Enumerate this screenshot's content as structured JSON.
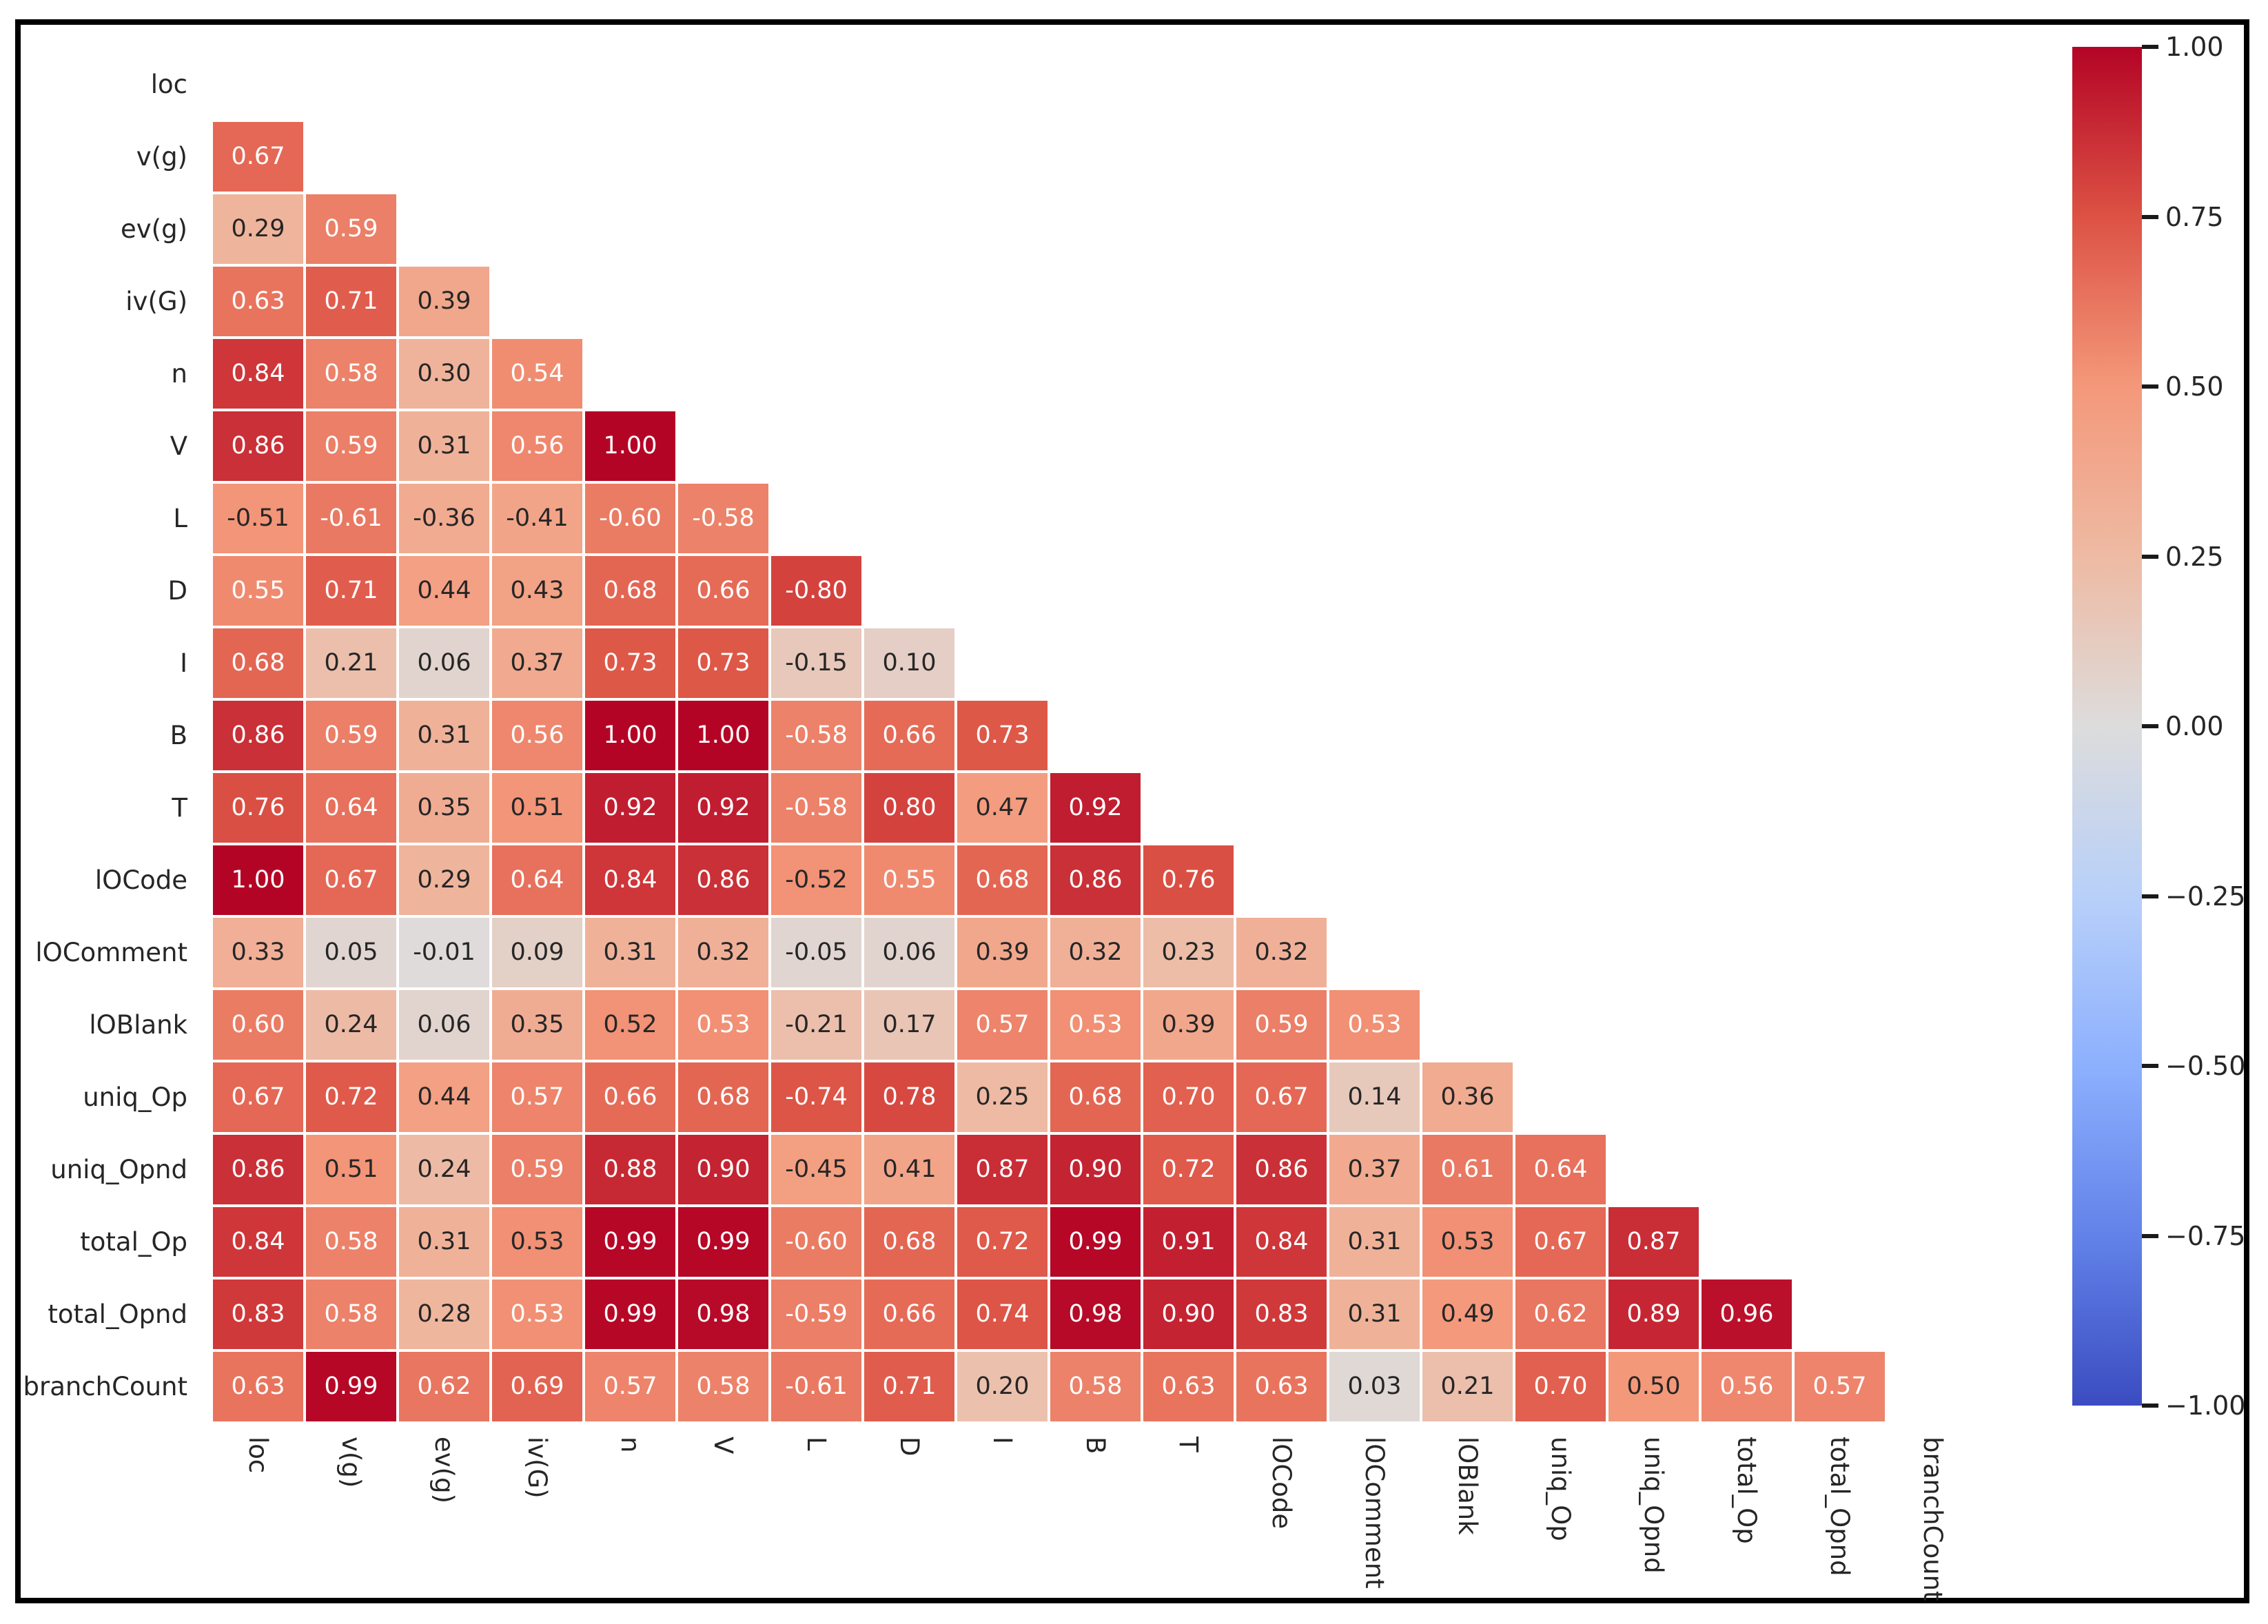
{
  "chart_data": {
    "type": "heatmap",
    "title": "",
    "description": "Lower-triangular correlation matrix heatmap with annotated coefficients, colored by absolute value on a coolwarm colormap",
    "labels": [
      "loc",
      "v(g)",
      "ev(g)",
      "iv(G)",
      "n",
      "V",
      "L",
      "D",
      "I",
      "B",
      "T",
      "lOCode",
      "lOComment",
      "lOBlank",
      "uniq_Op",
      "uniq_Opnd",
      "total_Op",
      "total_Opnd",
      "branchCount"
    ],
    "rows": [
      {
        "label": "loc",
        "values": []
      },
      {
        "label": "v(g)",
        "values": [
          0.67
        ]
      },
      {
        "label": "ev(g)",
        "values": [
          0.29,
          0.59
        ]
      },
      {
        "label": "iv(G)",
        "values": [
          0.63,
          0.71,
          0.39
        ]
      },
      {
        "label": "n",
        "values": [
          0.84,
          0.58,
          0.3,
          0.54
        ]
      },
      {
        "label": "V",
        "values": [
          0.86,
          0.59,
          0.31,
          0.56,
          1.0
        ]
      },
      {
        "label": "L",
        "values": [
          -0.51,
          -0.61,
          -0.36,
          -0.41,
          -0.6,
          -0.58
        ]
      },
      {
        "label": "D",
        "values": [
          0.55,
          0.71,
          0.44,
          0.43,
          0.68,
          0.66,
          -0.8
        ]
      },
      {
        "label": "I",
        "values": [
          0.68,
          0.21,
          0.06,
          0.37,
          0.73,
          0.73,
          -0.15,
          0.1
        ]
      },
      {
        "label": "B",
        "values": [
          0.86,
          0.59,
          0.31,
          0.56,
          1.0,
          1.0,
          -0.58,
          0.66,
          0.73
        ]
      },
      {
        "label": "T",
        "values": [
          0.76,
          0.64,
          0.35,
          0.51,
          0.92,
          0.92,
          -0.58,
          0.8,
          0.47,
          0.92
        ]
      },
      {
        "label": "lOCode",
        "values": [
          1.0,
          0.67,
          0.29,
          0.64,
          0.84,
          0.86,
          -0.52,
          0.55,
          0.68,
          0.86,
          0.76
        ]
      },
      {
        "label": "lOComment",
        "values": [
          0.33,
          0.05,
          -0.01,
          0.09,
          0.31,
          0.32,
          -0.05,
          0.06,
          0.39,
          0.32,
          0.23,
          0.32
        ]
      },
      {
        "label": "lOBlank",
        "values": [
          0.6,
          0.24,
          0.06,
          0.35,
          0.52,
          0.53,
          -0.21,
          0.17,
          0.57,
          0.53,
          0.39,
          0.59,
          0.53
        ]
      },
      {
        "label": "uniq_Op",
        "values": [
          0.67,
          0.72,
          0.44,
          0.57,
          0.66,
          0.68,
          -0.74,
          0.78,
          0.25,
          0.68,
          0.7,
          0.67,
          0.14,
          0.36
        ]
      },
      {
        "label": "uniq_Opnd",
        "values": [
          0.86,
          0.51,
          0.24,
          0.59,
          0.88,
          0.9,
          -0.45,
          0.41,
          0.87,
          0.9,
          0.72,
          0.86,
          0.37,
          0.61,
          0.64
        ]
      },
      {
        "label": "total_Op",
        "values": [
          0.84,
          0.58,
          0.31,
          0.53,
          0.99,
          0.99,
          -0.6,
          0.68,
          0.72,
          0.99,
          0.91,
          0.84,
          0.31,
          0.53,
          0.67,
          0.87
        ]
      },
      {
        "label": "total_Opnd",
        "values": [
          0.83,
          0.58,
          0.28,
          0.53,
          0.99,
          0.98,
          -0.59,
          0.66,
          0.74,
          0.98,
          0.9,
          0.83,
          0.31,
          0.49,
          0.62,
          0.89,
          0.96
        ]
      },
      {
        "label": "branchCount",
        "values": [
          0.63,
          0.99,
          0.62,
          0.69,
          0.57,
          0.58,
          -0.61,
          0.71,
          0.2,
          0.58,
          0.63,
          0.63,
          0.03,
          0.21,
          0.7,
          0.5,
          0.56,
          0.57
        ]
      }
    ],
    "annotation_decimals": 2,
    "colormap": {
      "name": "coolwarm",
      "mapped_by": "absolute-value",
      "anchors": [
        {
          "t": 0.0,
          "hex": "#3b4cc0"
        },
        {
          "t": 0.125,
          "hex": "#6282e9"
        },
        {
          "t": 0.25,
          "hex": "#8db0fe"
        },
        {
          "t": 0.375,
          "hex": "#b8d0f9"
        },
        {
          "t": 0.5,
          "hex": "#dddcdc"
        },
        {
          "t": 0.625,
          "hex": "#eebaa3"
        },
        {
          "t": 0.75,
          "hex": "#f4987a"
        },
        {
          "t": 0.875,
          "hex": "#dc5244"
        },
        {
          "t": 1.0,
          "hex": "#b40426"
        }
      ]
    },
    "text_colors": {
      "dark": "#262626",
      "light": "#ffffff",
      "light_threshold_abs": 0.53,
      "dark_overrides": [
        [
          16,
          3
        ],
        [
          16,
          13
        ]
      ]
    },
    "colorbar": {
      "vmin": -1.0,
      "vmax": 1.0,
      "tick_values": [
        1.0,
        0.75,
        0.5,
        0.25,
        0.0,
        -0.25,
        -0.5,
        -0.75,
        -1.0
      ],
      "tick_labels": [
        "1.00",
        "0.75",
        "0.50",
        "0.25",
        "0.00",
        "−0.25",
        "−0.50",
        "−0.75",
        "−1.00"
      ]
    },
    "layout_hints": {
      "mask": "upper-triangle-including-diagonal",
      "grid": false,
      "legend_position": "right-colorbar"
    }
  }
}
